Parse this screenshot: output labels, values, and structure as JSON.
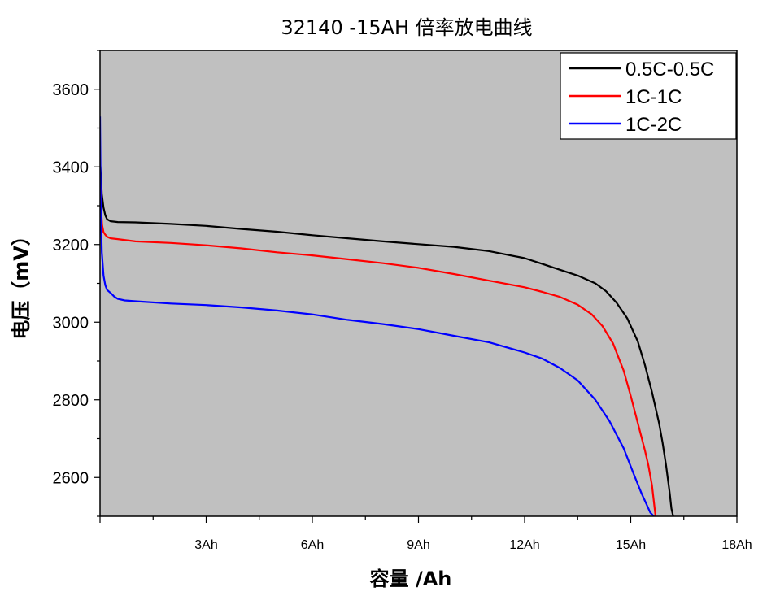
{
  "chart_data": {
    "type": "line",
    "title": "32140  -15AH 倍率放电曲线",
    "xlabel": "容量 /Ah",
    "ylabel": "电压（mV）",
    "xlim": [
      0,
      18
    ],
    "ylim": [
      2500,
      3700
    ],
    "x_ticks": [
      {
        "value": 3,
        "label": "3Ah"
      },
      {
        "value": 6,
        "label": "6Ah"
      },
      {
        "value": 9,
        "label": "9Ah"
      },
      {
        "value": 12,
        "label": "12Ah"
      },
      {
        "value": 15,
        "label": "15Ah"
      },
      {
        "value": 18,
        "label": "18Ah"
      }
    ],
    "y_ticks": [
      {
        "value": 2600,
        "label": "2600"
      },
      {
        "value": 2800,
        "label": "2800"
      },
      {
        "value": 3000,
        "label": "3000"
      },
      {
        "value": 3200,
        "label": "3200"
      },
      {
        "value": 3400,
        "label": "3400"
      },
      {
        "value": 3600,
        "label": "3600"
      }
    ],
    "grid": false,
    "background_color": "#c0c0c0",
    "legend_position": "top-right",
    "series": [
      {
        "name": "0.5C-0.5C",
        "color": "#000000",
        "x": [
          0,
          0.05,
          0.1,
          0.15,
          0.2,
          0.3,
          0.5,
          1,
          2,
          3,
          4,
          5,
          6,
          7,
          8,
          9,
          10,
          11,
          12,
          12.5,
          13,
          13.5,
          14,
          14.3,
          14.6,
          14.9,
          15.2,
          15.4,
          15.6,
          15.8,
          15.9,
          16.0,
          16.1,
          16.15,
          16.2
        ],
        "y": [
          3420,
          3330,
          3295,
          3275,
          3265,
          3260,
          3258,
          3257,
          3253,
          3248,
          3240,
          3233,
          3224,
          3216,
          3208,
          3201,
          3194,
          3183,
          3165,
          3150,
          3135,
          3120,
          3100,
          3080,
          3050,
          3010,
          2950,
          2890,
          2820,
          2740,
          2690,
          2630,
          2560,
          2520,
          2500
        ]
      },
      {
        "name": "1C-1C",
        "color": "#ff0000",
        "x": [
          0,
          0.03,
          0.06,
          0.1,
          0.15,
          0.2,
          0.3,
          0.5,
          1,
          2,
          3,
          4,
          5,
          6,
          7,
          8,
          9,
          10,
          11,
          12,
          12.5,
          13,
          13.5,
          13.9,
          14.2,
          14.5,
          14.8,
          15.0,
          15.2,
          15.4,
          15.5,
          15.6,
          15.65,
          15.7
        ],
        "y": [
          3390,
          3290,
          3250,
          3232,
          3225,
          3220,
          3216,
          3214,
          3208,
          3204,
          3198,
          3190,
          3180,
          3172,
          3162,
          3152,
          3140,
          3124,
          3107,
          3090,
          3078,
          3065,
          3045,
          3020,
          2990,
          2945,
          2875,
          2810,
          2740,
          2670,
          2630,
          2580,
          2540,
          2500
        ]
      },
      {
        "name": "1C-2C",
        "color": "#0000ff",
        "x": [
          0,
          0.02,
          0.05,
          0.1,
          0.15,
          0.2,
          0.3,
          0.4,
          0.5,
          0.7,
          1,
          2,
          3,
          4,
          5,
          6,
          7,
          8,
          9,
          10,
          11,
          12,
          12.5,
          13,
          13.5,
          14,
          14.4,
          14.8,
          15.1,
          15.3,
          15.45,
          15.55,
          15.65
        ],
        "y": [
          3530,
          3300,
          3180,
          3120,
          3095,
          3083,
          3075,
          3066,
          3060,
          3056,
          3054,
          3048,
          3044,
          3038,
          3030,
          3020,
          3006,
          2995,
          2982,
          2965,
          2948,
          2922,
          2906,
          2882,
          2850,
          2800,
          2745,
          2675,
          2605,
          2560,
          2530,
          2510,
          2500
        ]
      }
    ]
  }
}
